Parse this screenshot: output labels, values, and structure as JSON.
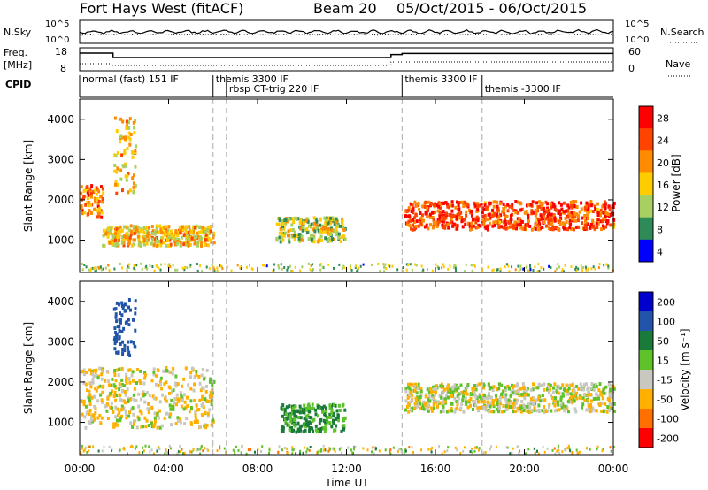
{
  "header": {
    "site": "Fort Hays West (fitACF)",
    "beam": "Beam 20",
    "dates": "05/Oct/2015 - 06/Oct/2015"
  },
  "top_panels": {
    "nsky_label": "N.Sky",
    "nsearch_label": "N.Search",
    "noise_ticks": [
      "10^5",
      "10^0"
    ],
    "freq_label_1": "Freq.",
    "freq_label_2": "[MHz]",
    "freq_ticks": [
      "18",
      "8"
    ],
    "nave_label": "Nave",
    "nave_ticks": [
      "60",
      "0"
    ],
    "cpid_label": "CPID",
    "cpid_segments": [
      {
        "label": "normal (fast) 151 IF",
        "start": 0.0,
        "end": 6.0
      },
      {
        "label": "themis 3300 IF",
        "start": 6.0,
        "end": 6.6
      },
      {
        "label": "rbsp CT-trig 220 IF",
        "start": 6.6,
        "end": 14.5
      },
      {
        "label": "themis 3300 IF",
        "start": 14.5,
        "end": 18.1
      },
      {
        "label": "themis -3300 IF",
        "start": 18.1,
        "end": 24.0
      }
    ]
  },
  "power_panel": {
    "ylabel": "Slant Range [km]",
    "yticks": [
      "4000",
      "3000",
      "2000",
      "1000"
    ],
    "colorbar_label": "Power [dB]",
    "colorbar_ticks": [
      "28",
      "24",
      "20",
      "16",
      "12",
      "8",
      "4"
    ],
    "colorbar_colors": [
      "#ff0000",
      "#ff4400",
      "#ff8c00",
      "#ffcc00",
      "#a8d060",
      "#2e8b57",
      "#0000ff"
    ]
  },
  "velocity_panel": {
    "ylabel": "Slant Range [km]",
    "yticks": [
      "4000",
      "3000",
      "2000",
      "1000"
    ],
    "colorbar_label": "Velocity [m s⁻¹]",
    "colorbar_ticks": [
      "200",
      "100",
      "50",
      "15",
      "-15",
      "-50",
      "-100",
      "-200"
    ],
    "colorbar_colors": [
      "#0000cc",
      "#2255aa",
      "#1a7a3a",
      "#5ec22a",
      "#c8c8c0",
      "#ffb000",
      "#ff7000",
      "#ff0000"
    ]
  },
  "xaxis": {
    "ticks": [
      "00:00",
      "04:00",
      "08:00",
      "12:00",
      "16:00",
      "20:00",
      "00:00"
    ],
    "label": "Time UT"
  },
  "chart_data": {
    "type": "heatmap",
    "title": "Fort Hays West (fitACF)  Beam 20  05/Oct/2015 - 06/Oct/2015",
    "xlabel": "Time UT",
    "ylabel": "Slant Range [km]",
    "xlim": [
      0,
      24
    ],
    "ylim": [
      200,
      4500
    ],
    "mode_changes_hours": [
      6.0,
      6.6,
      14.5,
      18.1
    ],
    "power_db_range": [
      0,
      30
    ],
    "velocity_range": [
      -250,
      250
    ],
    "power_echo_bands": [
      {
        "t": [
          0.0,
          1.0
        ],
        "range_km": [
          1600,
          2400
        ],
        "power_db": 20
      },
      {
        "t": [
          1.0,
          6.0
        ],
        "range_km": [
          900,
          1400
        ],
        "power_db": 16
      },
      {
        "t": [
          1.5,
          2.5
        ],
        "range_km": [
          2200,
          4100
        ],
        "power_db": 16
      },
      {
        "t": [
          8.8,
          11.9
        ],
        "range_km": [
          1000,
          1600
        ],
        "power_db": 12
      },
      {
        "t": [
          14.6,
          24.0
        ],
        "range_km": [
          1300,
          2000
        ],
        "power_db": 24
      }
    ],
    "velocity_echo_bands": [
      {
        "t": [
          0.0,
          6.0
        ],
        "range_km": [
          900,
          2400
        ],
        "velocity": -10
      },
      {
        "t": [
          1.5,
          2.5
        ],
        "range_km": [
          2700,
          4100
        ],
        "velocity": 150
      },
      {
        "t": [
          9.0,
          11.9
        ],
        "range_km": [
          800,
          1500
        ],
        "velocity": 60
      },
      {
        "t": [
          14.6,
          24.0
        ],
        "range_km": [
          1300,
          2000
        ],
        "velocity": 0
      }
    ],
    "grid": false
  }
}
